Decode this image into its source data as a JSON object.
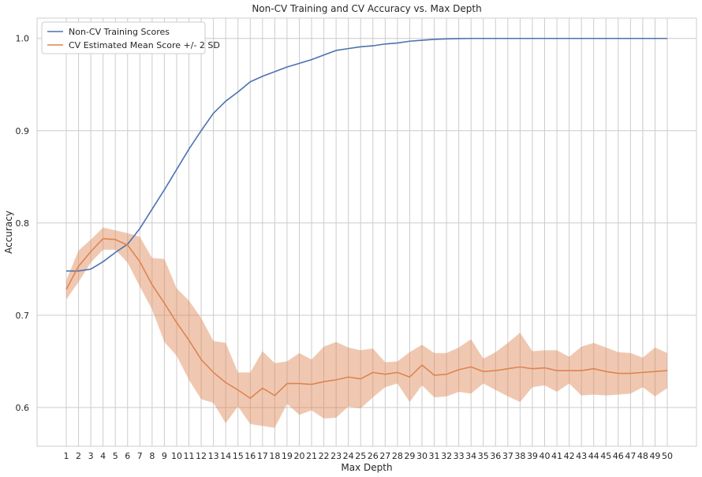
{
  "chart_data": {
    "type": "line",
    "title": "Non-CV Training and CV Accuracy vs. Max Depth",
    "xlabel": "Max Depth",
    "ylabel": "Accuracy",
    "x": [
      1,
      2,
      3,
      4,
      5,
      6,
      7,
      8,
      9,
      10,
      11,
      12,
      13,
      14,
      15,
      16,
      17,
      18,
      19,
      20,
      21,
      22,
      23,
      24,
      25,
      26,
      27,
      28,
      29,
      30,
      31,
      32,
      33,
      34,
      35,
      36,
      37,
      38,
      39,
      40,
      41,
      42,
      43,
      44,
      45,
      46,
      47,
      48,
      49,
      50
    ],
    "xlim": [
      1,
      50
    ],
    "ylim": [
      0.558,
      1.022
    ],
    "yticks": [
      0.6,
      0.7,
      0.8,
      0.9,
      1.0
    ],
    "ytick_labels": [
      "0.6",
      "0.7",
      "0.8",
      "0.9",
      "1.0"
    ],
    "grid": true,
    "legend_position": "upper-left",
    "series": [
      {
        "name": "Non-CV Training Scores",
        "color": "#4c72b0",
        "values": [
          0.748,
          0.748,
          0.75,
          0.758,
          0.768,
          0.777,
          0.794,
          0.815,
          0.836,
          0.858,
          0.88,
          0.9,
          0.919,
          0.932,
          0.942,
          0.953,
          0.959,
          0.964,
          0.969,
          0.973,
          0.977,
          0.982,
          0.987,
          0.989,
          0.991,
          0.992,
          0.994,
          0.995,
          0.997,
          0.998,
          0.999,
          0.9995,
          0.9998,
          1.0,
          1.0,
          1.0,
          1.0,
          1.0,
          1.0,
          1.0,
          1.0,
          1.0,
          1.0,
          1.0,
          1.0,
          1.0,
          1.0,
          1.0,
          1.0,
          1.0
        ]
      },
      {
        "name": "CV Estimated Mean Score +/- 2 SD",
        "color": "#dd8452",
        "band_color": "#dd8452",
        "values": [
          0.728,
          0.753,
          0.769,
          0.783,
          0.782,
          0.776,
          0.758,
          0.733,
          0.713,
          0.692,
          0.673,
          0.652,
          0.638,
          0.627,
          0.619,
          0.61,
          0.621,
          0.613,
          0.626,
          0.626,
          0.625,
          0.628,
          0.63,
          0.633,
          0.631,
          0.638,
          0.636,
          0.638,
          0.633,
          0.646,
          0.635,
          0.636,
          0.641,
          0.644,
          0.639,
          0.64,
          0.642,
          0.644,
          0.642,
          0.643,
          0.64,
          0.64,
          0.64,
          0.642,
          0.639,
          0.637,
          0.637,
          0.638,
          0.639,
          0.64
        ],
        "upper": [
          0.738,
          0.77,
          0.782,
          0.795,
          0.792,
          0.789,
          0.785,
          0.762,
          0.761,
          0.729,
          0.716,
          0.697,
          0.672,
          0.67,
          0.638,
          0.638,
          0.661,
          0.648,
          0.65,
          0.659,
          0.652,
          0.666,
          0.671,
          0.665,
          0.662,
          0.664,
          0.649,
          0.65,
          0.66,
          0.668,
          0.659,
          0.659,
          0.665,
          0.674,
          0.653,
          0.66,
          0.67,
          0.681,
          0.661,
          0.662,
          0.662,
          0.655,
          0.666,
          0.67,
          0.665,
          0.66,
          0.659,
          0.654,
          0.665,
          0.659
        ],
        "lower": [
          0.717,
          0.736,
          0.757,
          0.771,
          0.771,
          0.757,
          0.731,
          0.706,
          0.671,
          0.656,
          0.63,
          0.609,
          0.605,
          0.583,
          0.601,
          0.582,
          0.58,
          0.578,
          0.604,
          0.592,
          0.597,
          0.588,
          0.589,
          0.601,
          0.599,
          0.611,
          0.622,
          0.626,
          0.606,
          0.624,
          0.611,
          0.612,
          0.617,
          0.615,
          0.626,
          0.619,
          0.612,
          0.606,
          0.622,
          0.624,
          0.617,
          0.626,
          0.613,
          0.614,
          0.613,
          0.614,
          0.615,
          0.622,
          0.612,
          0.621
        ]
      }
    ]
  }
}
